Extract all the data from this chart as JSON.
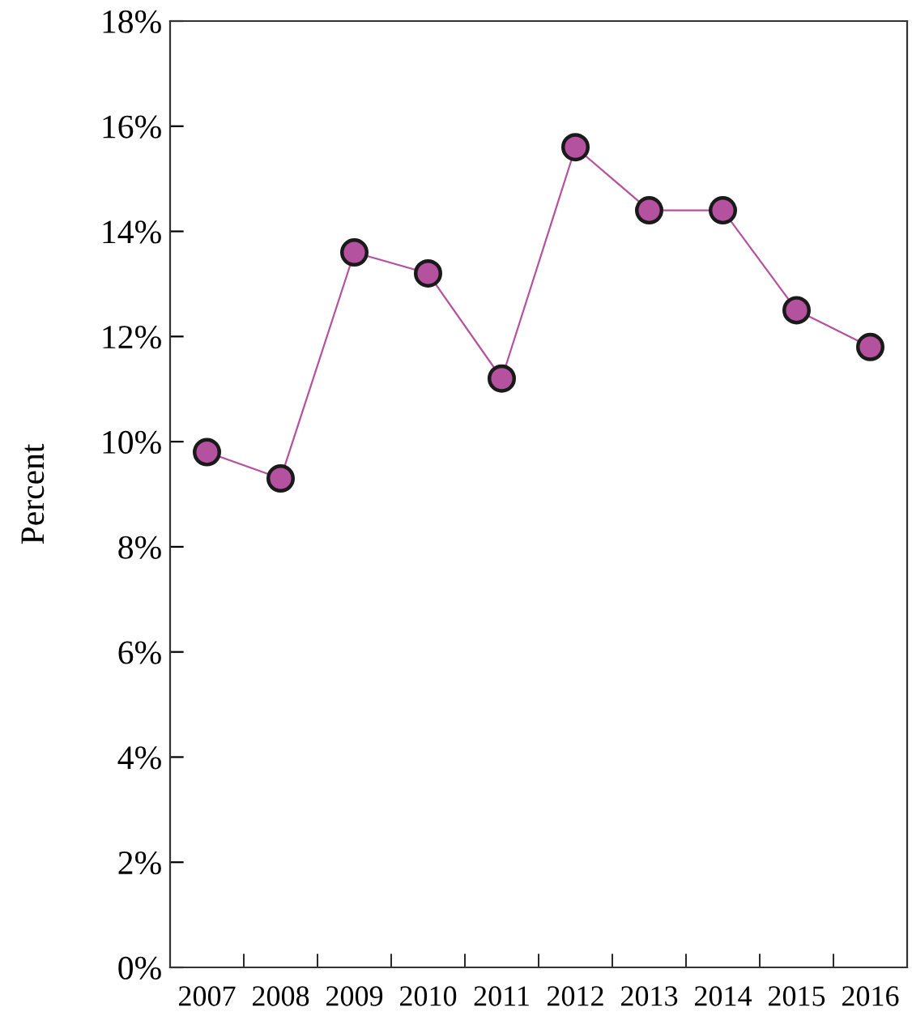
{
  "chart_data": {
    "type": "line",
    "ylabel": "Percent",
    "categories": [
      "2007",
      "2008",
      "2009",
      "2010",
      "2011",
      "2012",
      "2013",
      "2014",
      "2015",
      "2016"
    ],
    "series": [
      {
        "color": "#b5529f",
        "values": [
          9.8,
          9.3,
          13.6,
          13.2,
          11.2,
          15.6,
          14.4,
          14.4,
          12.5,
          11.8
        ]
      }
    ],
    "ylim": [
      0,
      18
    ],
    "yticks": [
      {
        "value": 0,
        "label": "0%"
      },
      {
        "value": 2,
        "label": "2%"
      },
      {
        "value": 4,
        "label": "4%"
      },
      {
        "value": 6,
        "label": "6%"
      },
      {
        "value": 8,
        "label": "8%"
      },
      {
        "value": 10,
        "label": "10%"
      },
      {
        "value": 12,
        "label": "12%"
      },
      {
        "value": 14,
        "label": "14%"
      },
      {
        "value": 16,
        "label": "16%"
      },
      {
        "value": 18,
        "label": "18%"
      }
    ],
    "marker": "circle",
    "line_style": "solid",
    "grid": false
  }
}
